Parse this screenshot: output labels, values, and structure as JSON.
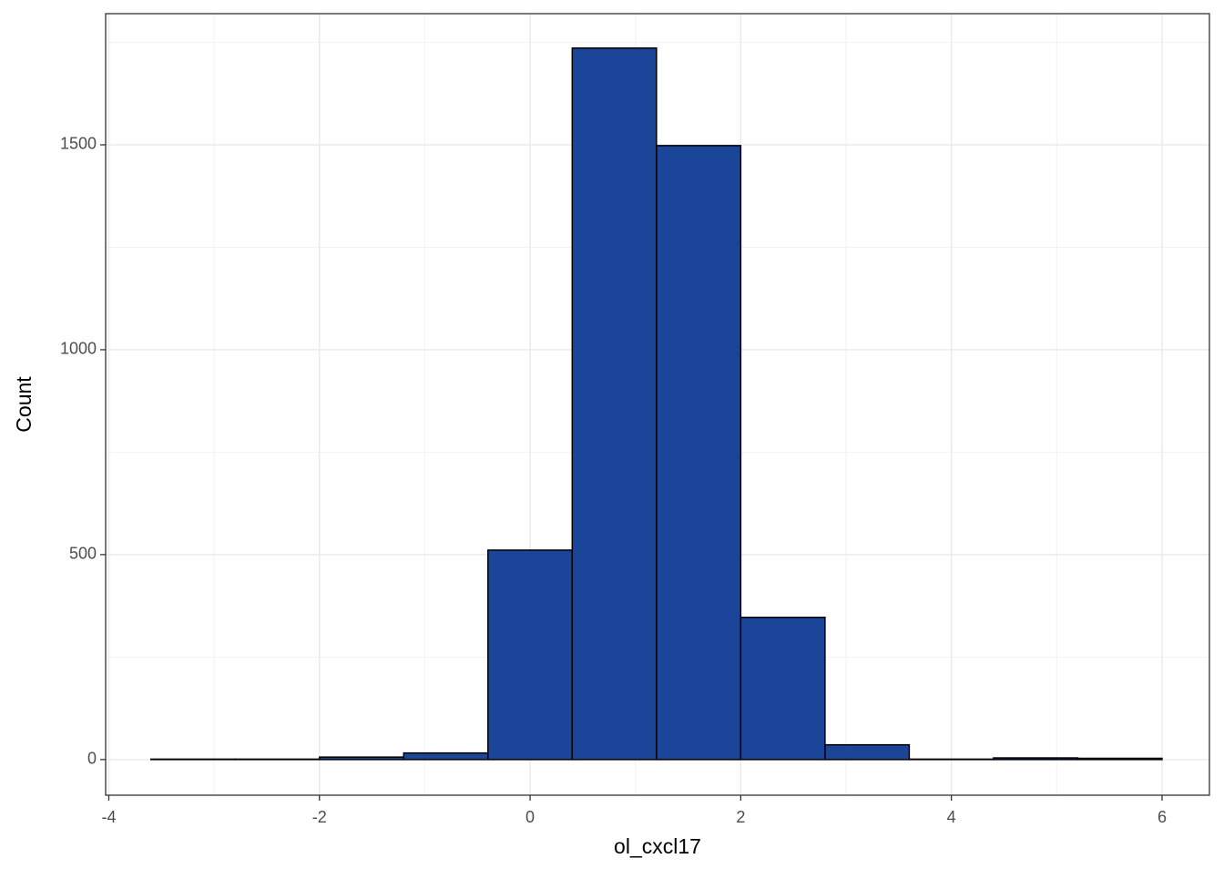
{
  "chart_data": {
    "type": "histogram",
    "x_label": "ol_cxcl17",
    "y_label": "Count",
    "bins": [
      -3.6,
      -2.8,
      -2.0,
      -1.2,
      -0.4,
      0.4,
      1.2,
      2.0,
      2.8,
      3.6,
      4.4,
      5.2,
      6.0
    ],
    "values": [
      1,
      1,
      6,
      16,
      511,
      1736,
      1498,
      347,
      36,
      1,
      4,
      3
    ],
    "color": "#1a4599",
    "edge_color": "#000000",
    "xlim": [
      -4.03,
      6.45
    ],
    "ylim": [
      -87,
      1820
    ],
    "xticks": [
      -4,
      -2,
      0,
      2,
      4,
      6
    ],
    "yticks": [
      0,
      500,
      1000,
      1500
    ],
    "xminor": [
      -3,
      -1,
      1,
      3,
      5
    ],
    "yminor": [
      250,
      750,
      1250,
      1750
    ],
    "grid": true
  }
}
